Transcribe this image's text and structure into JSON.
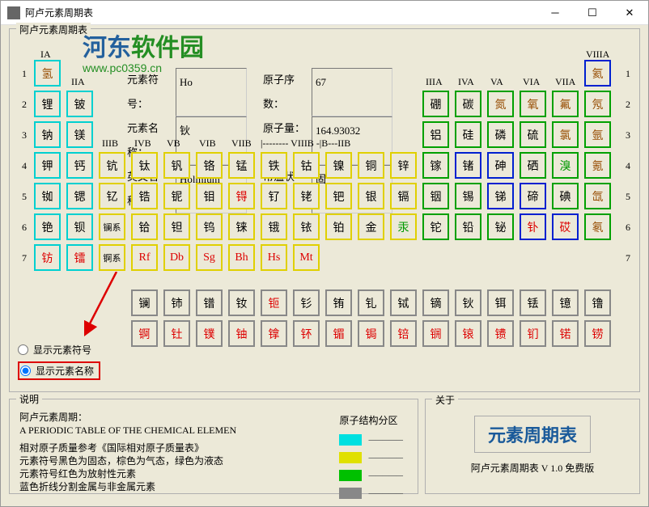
{
  "window": {
    "title": "阿卢元素周期表"
  },
  "panel": {
    "title": "阿卢元素周期表"
  },
  "watermark": {
    "cn_prefix": "河东",
    "cn_suffix": "软件园",
    "url": "www.pc0359.cn"
  },
  "info": {
    "symbol_label": "元素符号：",
    "symbol": "Ho",
    "name_label": "元素名称：",
    "name": "钬",
    "eng_label": "英文名称：",
    "eng": "Holmium",
    "num_label": "原子序数：",
    "num": "67",
    "mass_label": "原子量：",
    "mass": "164.93032",
    "state_label": "常温状态：",
    "state": "固"
  },
  "groups": {
    "IA": "IA",
    "IIA": "IIA",
    "IIIB": "IIIB",
    "IVB": "IVB",
    "VB": "VB",
    "VIB": "VIB",
    "VIIB": "VIIB",
    "VIIIB": "|-------- VIIIB -|",
    "IB": "B---",
    "IIB": "IIB",
    "IIIA": "IIIA",
    "IVA": "IVA",
    "VA": "VA",
    "VIA": "VIA",
    "VIIA": "VIIA",
    "VIIIA": "VIIIA"
  },
  "rows": [
    "1",
    "2",
    "3",
    "4",
    "5",
    "6",
    "7"
  ],
  "series": {
    "lan": "镧系",
    "act": "锕系"
  },
  "radios": {
    "symbol": "显示元素符号",
    "name": "显示元素名称"
  },
  "borders": {
    "cyan": "#00d0d0",
    "yellow": "#e0d000",
    "green": "#00a000",
    "blue": "#0020d0",
    "gray": "#888"
  },
  "elements": {
    "r1": [
      {
        "t": "氢",
        "c": "brown",
        "b": "cyan"
      },
      {
        "t": "氦",
        "c": "brown",
        "b": "blue"
      }
    ],
    "r2": [
      {
        "t": "锂",
        "b": "cyan"
      },
      {
        "t": "铍",
        "b": "cyan"
      },
      {
        "t": "硼",
        "b": "green"
      },
      {
        "t": "碳",
        "b": "green"
      },
      {
        "t": "氮",
        "c": "brown",
        "b": "green"
      },
      {
        "t": "氧",
        "c": "brown",
        "b": "green"
      },
      {
        "t": "氟",
        "c": "brown",
        "b": "green"
      },
      {
        "t": "氖",
        "c": "brown",
        "b": "green"
      }
    ],
    "r3": [
      {
        "t": "钠",
        "b": "cyan"
      },
      {
        "t": "镁",
        "b": "cyan"
      },
      {
        "t": "铝",
        "b": "green"
      },
      {
        "t": "硅",
        "b": "green"
      },
      {
        "t": "磷",
        "b": "green"
      },
      {
        "t": "硫",
        "b": "green"
      },
      {
        "t": "氯",
        "c": "brown",
        "b": "green"
      },
      {
        "t": "氩",
        "c": "brown",
        "b": "green"
      }
    ],
    "r4": [
      {
        "t": "钾",
        "b": "cyan"
      },
      {
        "t": "钙",
        "b": "cyan"
      },
      {
        "t": "钪",
        "b": "yellow"
      },
      {
        "t": "钛",
        "b": "yellow"
      },
      {
        "t": "钒",
        "b": "yellow"
      },
      {
        "t": "铬",
        "b": "yellow"
      },
      {
        "t": "锰",
        "b": "yellow"
      },
      {
        "t": "铁",
        "b": "yellow"
      },
      {
        "t": "钴",
        "b": "yellow"
      },
      {
        "t": "镍",
        "b": "yellow"
      },
      {
        "t": "铜",
        "b": "yellow"
      },
      {
        "t": "锌",
        "b": "yellow"
      },
      {
        "t": "镓",
        "b": "green"
      },
      {
        "t": "锗",
        "b": "blue"
      },
      {
        "t": "砷",
        "b": "blue"
      },
      {
        "t": "硒",
        "b": "green"
      },
      {
        "t": "溴",
        "c": "green",
        "b": "green"
      },
      {
        "t": "氪",
        "c": "brown",
        "b": "green"
      }
    ],
    "r5": [
      {
        "t": "铷",
        "b": "cyan"
      },
      {
        "t": "锶",
        "b": "cyan"
      },
      {
        "t": "钇",
        "b": "yellow"
      },
      {
        "t": "锆",
        "b": "yellow"
      },
      {
        "t": "铌",
        "b": "yellow"
      },
      {
        "t": "钼",
        "b": "yellow"
      },
      {
        "t": "锝",
        "c": "red",
        "b": "yellow"
      },
      {
        "t": "钌",
        "b": "yellow"
      },
      {
        "t": "铑",
        "b": "yellow"
      },
      {
        "t": "钯",
        "b": "yellow"
      },
      {
        "t": "银",
        "b": "yellow"
      },
      {
        "t": "镉",
        "b": "yellow"
      },
      {
        "t": "铟",
        "b": "green"
      },
      {
        "t": "锡",
        "b": "green"
      },
      {
        "t": "锑",
        "b": "blue"
      },
      {
        "t": "碲",
        "b": "blue"
      },
      {
        "t": "碘",
        "b": "green"
      },
      {
        "t": "氙",
        "c": "brown",
        "b": "green"
      }
    ],
    "r6": [
      {
        "t": "铯",
        "b": "cyan"
      },
      {
        "t": "钡",
        "b": "cyan"
      },
      {
        "t": "镧系",
        "b": "yellow",
        "small": true
      },
      {
        "t": "铪",
        "b": "yellow"
      },
      {
        "t": "钽",
        "b": "yellow"
      },
      {
        "t": "钨",
        "b": "yellow"
      },
      {
        "t": "铼",
        "b": "yellow"
      },
      {
        "t": "锇",
        "b": "yellow"
      },
      {
        "t": "铱",
        "b": "yellow"
      },
      {
        "t": "铂",
        "b": "yellow"
      },
      {
        "t": "金",
        "b": "yellow"
      },
      {
        "t": "汞",
        "c": "green",
        "b": "yellow"
      },
      {
        "t": "铊",
        "b": "green"
      },
      {
        "t": "铅",
        "b": "green"
      },
      {
        "t": "铋",
        "b": "green"
      },
      {
        "t": "钋",
        "c": "red",
        "b": "blue"
      },
      {
        "t": "砹",
        "c": "red",
        "b": "blue"
      },
      {
        "t": "氡",
        "c": "brown",
        "b": "green"
      }
    ],
    "r7": [
      {
        "t": "钫",
        "c": "red",
        "b": "cyan"
      },
      {
        "t": "镭",
        "c": "red",
        "b": "cyan"
      },
      {
        "t": "锕系",
        "b": "yellow",
        "small": true
      },
      {
        "t": "Rf",
        "c": "red",
        "b": "yellow"
      },
      {
        "t": "Db",
        "c": "red",
        "b": "yellow"
      },
      {
        "t": "Sg",
        "c": "red",
        "b": "yellow"
      },
      {
        "t": "Bh",
        "c": "red",
        "b": "yellow"
      },
      {
        "t": "Hs",
        "c": "red",
        "b": "yellow"
      },
      {
        "t": "Mt",
        "c": "red",
        "b": "yellow"
      }
    ],
    "lan": [
      {
        "t": "镧"
      },
      {
        "t": "铈"
      },
      {
        "t": "镨"
      },
      {
        "t": "钕"
      },
      {
        "t": "钷",
        "c": "red"
      },
      {
        "t": "钐"
      },
      {
        "t": "铕"
      },
      {
        "t": "钆"
      },
      {
        "t": "铽"
      },
      {
        "t": "镝"
      },
      {
        "t": "钬"
      },
      {
        "t": "铒"
      },
      {
        "t": "铥"
      },
      {
        "t": "镱"
      },
      {
        "t": "镥"
      }
    ],
    "act": [
      {
        "t": "锕",
        "c": "red"
      },
      {
        "t": "钍",
        "c": "red"
      },
      {
        "t": "镤",
        "c": "red"
      },
      {
        "t": "铀",
        "c": "red"
      },
      {
        "t": "镎",
        "c": "red"
      },
      {
        "t": "钚",
        "c": "red"
      },
      {
        "t": "镅",
        "c": "red"
      },
      {
        "t": "锔",
        "c": "red"
      },
      {
        "t": "锫",
        "c": "red"
      },
      {
        "t": "锎",
        "c": "red"
      },
      {
        "t": "锿",
        "c": "red"
      },
      {
        "t": "镄",
        "c": "red"
      },
      {
        "t": "钔",
        "c": "red"
      },
      {
        "t": "锘",
        "c": "red"
      },
      {
        "t": "铹",
        "c": "red"
      }
    ]
  },
  "explain": {
    "title": "说明",
    "l1": "阿卢元素周期：",
    "l2": "A PERIODIC TABLE OF THE CHEMICAL ELEMEN",
    "l3": "相对原子质量参考《国际相对原子质量表》",
    "l4": "元素符号黑色为固态，棕色为气态，绿色为液态",
    "l5": "元素符号红色为放射性元素",
    "l6": "蓝色折线分割金属与非金属元素",
    "key_label": "原子结构分区",
    "keys": [
      {
        "color": "#00e0e0",
        "label": "─────"
      },
      {
        "color": "#e0e000",
        "label": "─────"
      },
      {
        "color": "#00c000",
        "label": "─────"
      },
      {
        "color": "#888888",
        "label": "─────"
      }
    ]
  },
  "about": {
    "title": "关于",
    "heading": "元素周期表",
    "version": "阿卢元素周期表    V 1.0 免费版"
  }
}
